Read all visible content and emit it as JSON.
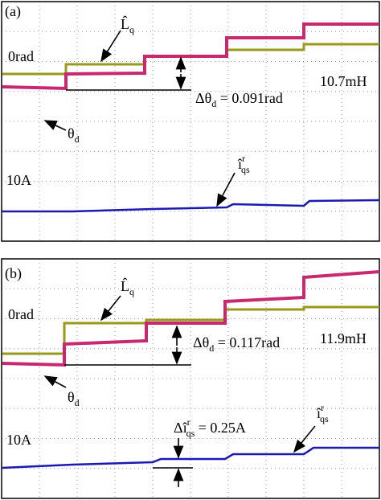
{
  "panels": [
    {
      "label": "(a)",
      "l_hat_q": {
        "symbol": "L̂",
        "sub": "q"
      },
      "zero_label": "0rad",
      "inductance": "10.7mH",
      "delta_theta": {
        "prefix": "Δθ",
        "sub": "d",
        "rest": " = 0.091rad"
      },
      "theta": {
        "symbol": "θ",
        "sub": "d"
      },
      "current": {
        "symbol": "î",
        "sup": "r",
        "sub": "qs"
      },
      "current_scale": "10A"
    },
    {
      "label": "(b)",
      "l_hat_q": {
        "symbol": "L̂",
        "sub": "q"
      },
      "zero_label": "0rad",
      "inductance": "11.9mH",
      "delta_theta": {
        "prefix": "Δθ",
        "sub": "d",
        "rest": " = 0.117rad"
      },
      "theta": {
        "symbol": "θ",
        "sub": "d"
      },
      "delta_current": {
        "prefix": "Δî",
        "sup": "r",
        "sub": "qs",
        "rest": " = 0.25A"
      },
      "current": {
        "symbol": "î",
        "sup": "r",
        "sub": "qs"
      },
      "current_scale": "10A"
    }
  ]
}
